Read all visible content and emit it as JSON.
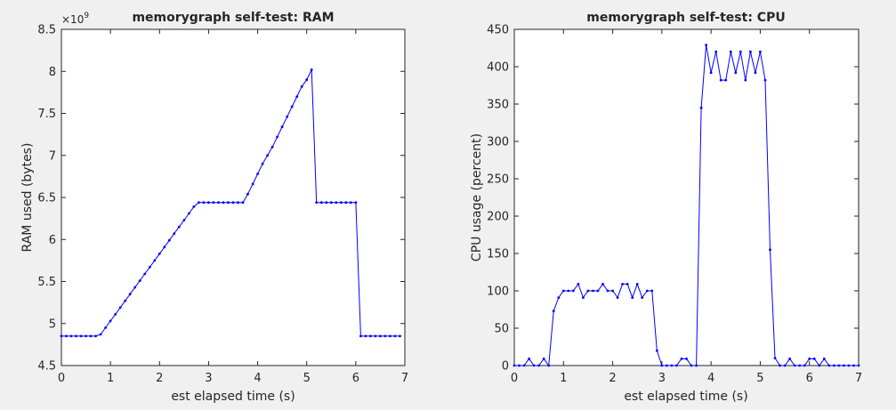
{
  "chart_data": [
    {
      "type": "line",
      "title": "memorygraph self-test: RAM",
      "xlabel": "est elapsed time (s)",
      "ylabel": "RAM used (bytes)",
      "y_exponent_label": "×10",
      "y_exponent_power": "9",
      "y_scale": 1000000000,
      "xlim": [
        0,
        7
      ],
      "ylim": [
        4.5,
        8.5
      ],
      "xticks": [
        0,
        1,
        2,
        3,
        4,
        5,
        6,
        7
      ],
      "xtick_labels": [
        "0",
        "1",
        "2",
        "3",
        "4",
        "5",
        "6",
        "7"
      ],
      "yticks": [
        4.5,
        5,
        5.5,
        6,
        6.5,
        7,
        7.5,
        8,
        8.5
      ],
      "ytick_labels": [
        "4.5",
        "5",
        "5.5",
        "6",
        "6.5",
        "7",
        "7.5",
        "8",
        "8.5"
      ],
      "grid": false,
      "color": "#0000ff",
      "marker": "dot",
      "x": [
        0.0,
        0.1,
        0.2,
        0.3,
        0.4,
        0.5,
        0.6,
        0.7,
        0.8,
        0.9,
        1.0,
        1.1,
        1.2,
        1.3,
        1.4,
        1.5,
        1.6,
        1.7,
        1.8,
        1.9,
        2.0,
        2.1,
        2.2,
        2.3,
        2.4,
        2.5,
        2.6,
        2.7,
        2.8,
        2.9,
        3.0,
        3.1,
        3.2,
        3.3,
        3.4,
        3.5,
        3.6,
        3.7,
        3.8,
        3.9,
        4.0,
        4.1,
        4.2,
        4.3,
        4.4,
        4.5,
        4.6,
        4.7,
        4.8,
        4.9,
        5.0,
        5.1,
        5.2,
        5.3,
        5.4,
        5.5,
        5.6,
        5.7,
        5.8,
        5.9,
        6.0,
        6.1,
        6.2,
        6.3,
        6.4,
        6.5,
        6.6,
        6.7,
        6.8,
        6.9
      ],
      "y": [
        4.85,
        4.85,
        4.85,
        4.85,
        4.85,
        4.85,
        4.85,
        4.85,
        4.87,
        4.95,
        5.03,
        5.11,
        5.19,
        5.27,
        5.35,
        5.43,
        5.51,
        5.59,
        5.67,
        5.75,
        5.83,
        5.91,
        5.99,
        6.07,
        6.15,
        6.23,
        6.31,
        6.39,
        6.44,
        6.44,
        6.44,
        6.44,
        6.44,
        6.44,
        6.44,
        6.44,
        6.44,
        6.44,
        6.54,
        6.66,
        6.78,
        6.9,
        7.0,
        7.1,
        7.22,
        7.34,
        7.46,
        7.58,
        7.7,
        7.82,
        7.9,
        8.02,
        6.44,
        6.44,
        6.44,
        6.44,
        6.44,
        6.44,
        6.44,
        6.44,
        6.44,
        4.85,
        4.85,
        4.85,
        4.85,
        4.85,
        4.85,
        4.85,
        4.85,
        4.85
      ]
    },
    {
      "type": "line",
      "title": "memorygraph self-test: CPU",
      "xlabel": "est elapsed time (s)",
      "ylabel": "CPU usage (percent)",
      "xlim": [
        0,
        7
      ],
      "ylim": [
        0,
        450
      ],
      "xticks": [
        0,
        1,
        2,
        3,
        4,
        5,
        6,
        7
      ],
      "xtick_labels": [
        "0",
        "1",
        "2",
        "3",
        "4",
        "5",
        "6",
        "7"
      ],
      "yticks": [
        0,
        50,
        100,
        150,
        200,
        250,
        300,
        350,
        400,
        450
      ],
      "ytick_labels": [
        "0",
        "50",
        "100",
        "150",
        "200",
        "250",
        "300",
        "350",
        "400",
        "450"
      ],
      "grid": false,
      "color": "#0000ff",
      "marker": "dot",
      "x": [
        0.0,
        0.1,
        0.2,
        0.3,
        0.4,
        0.5,
        0.6,
        0.7,
        0.8,
        0.9,
        1.0,
        1.1,
        1.2,
        1.3,
        1.4,
        1.5,
        1.6,
        1.7,
        1.8,
        1.9,
        2.0,
        2.1,
        2.2,
        2.3,
        2.4,
        2.5,
        2.6,
        2.7,
        2.8,
        2.9,
        3.0,
        3.1,
        3.2,
        3.3,
        3.4,
        3.5,
        3.6,
        3.7,
        3.8,
        3.9,
        4.0,
        4.1,
        4.2,
        4.3,
        4.4,
        4.5,
        4.6,
        4.7,
        4.8,
        4.9,
        5.0,
        5.1,
        5.2,
        5.3,
        5.4,
        5.5,
        5.6,
        5.7,
        5.8,
        5.9,
        6.0,
        6.1,
        6.2,
        6.3,
        6.4,
        6.5,
        6.6,
        6.7,
        6.8,
        6.9,
        7.0
      ],
      "y": [
        0,
        0,
        0,
        9,
        0,
        0,
        9,
        0,
        73,
        91,
        100,
        100,
        100,
        109,
        91,
        100,
        100,
        100,
        109,
        100,
        100,
        91,
        109,
        109,
        91,
        109,
        91,
        100,
        100,
        20,
        0,
        0,
        0,
        0,
        9,
        9,
        0,
        0,
        345,
        429,
        392,
        420,
        382,
        382,
        420,
        392,
        420,
        382,
        420,
        392,
        420,
        382,
        155,
        10,
        0,
        0,
        9,
        0,
        0,
        0,
        9,
        9,
        0,
        9,
        0,
        0,
        0,
        0,
        0,
        0,
        0
      ]
    }
  ]
}
